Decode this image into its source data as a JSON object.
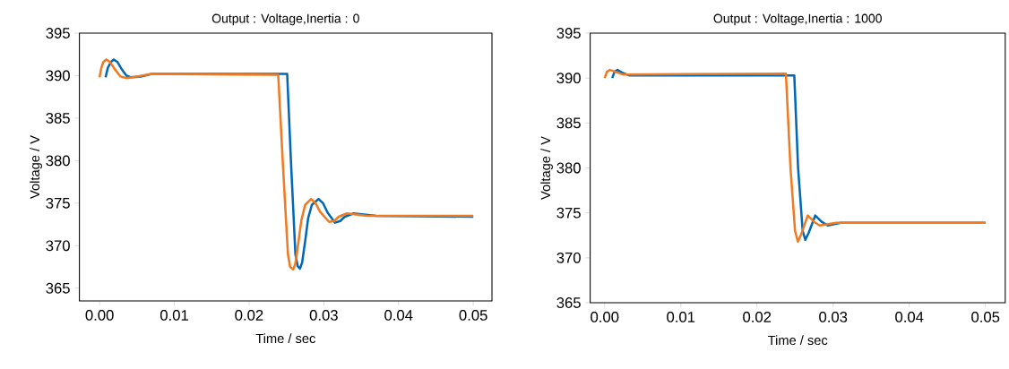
{
  "chart_data": [
    {
      "type": "line",
      "title": "Output : Voltage,Inertia : 0",
      "xlabel": "Time / sec",
      "ylabel": "Voltage / V",
      "xlim": [
        -0.0027,
        0.0525
      ],
      "ylim": [
        363.5,
        395
      ],
      "xticks": [
        {
          "value": 0,
          "label": "0.00"
        },
        0.01,
        0.02,
        0.03,
        0.04,
        0.05
      ],
      "yticks": [
        365,
        370,
        375,
        380,
        385,
        390,
        395
      ],
      "grid": false,
      "marker": "none",
      "line_style": "solid",
      "series": [
        {
          "color": "#0068b7",
          "x": [
            0.0008,
            0.0011,
            0.0015,
            0.0019,
            0.0024,
            0.003,
            0.0036,
            0.0042,
            0.0055,
            0.007,
            0.0251,
            0.0256,
            0.0262,
            0.0265,
            0.0268,
            0.0271,
            0.0275,
            0.0279,
            0.0284,
            0.0293,
            0.0299,
            0.0305,
            0.0315,
            0.0322,
            0.0328,
            0.034,
            0.037,
            0.05
          ],
          "values": [
            389.8,
            390.9,
            391.6,
            391.9,
            391.6,
            390.7,
            390.0,
            389.8,
            389.9,
            390.2,
            390.2,
            380,
            369,
            367.6,
            367.3,
            368.0,
            370.5,
            373.2,
            374.8,
            375.5,
            375.0,
            373.9,
            372.7,
            372.9,
            373.4,
            373.8,
            373.5,
            373.4
          ]
        },
        {
          "color": "#f07a22",
          "x": [
            0.0,
            0.0002,
            0.0005,
            0.0009,
            0.0014,
            0.002,
            0.0028,
            0.0036,
            0.005,
            0.0069,
            0.0239,
            0.0245,
            0.0252,
            0.0255,
            0.0259,
            0.0262,
            0.0266,
            0.027,
            0.0275,
            0.0283,
            0.0289,
            0.0295,
            0.0307,
            0.0314,
            0.032,
            0.0331,
            0.0358,
            0.05
          ],
          "values": [
            389.8,
            390.8,
            391.6,
            391.9,
            391.6,
            390.8,
            389.9,
            389.7,
            389.9,
            390.2,
            390.1,
            380,
            369,
            367.5,
            367.2,
            367.9,
            370.4,
            373.0,
            374.8,
            375.5,
            375.0,
            374.0,
            372.8,
            372.9,
            373.4,
            373.8,
            373.5,
            373.5
          ]
        }
      ]
    },
    {
      "type": "line",
      "title": "Output : Voltage,Inertia : 1000",
      "xlabel": "Time / sec",
      "ylabel": "Voltage / V",
      "xlim": [
        -0.0019,
        0.0526
      ],
      "ylim": [
        365,
        395
      ],
      "xticks": [
        {
          "value": 0,
          "label": "0.00"
        },
        0.01,
        0.02,
        0.03,
        0.04,
        0.05
      ],
      "yticks": [
        365,
        370,
        375,
        380,
        385,
        390,
        395
      ],
      "grid": false,
      "marker": "none",
      "line_style": "solid",
      "series": [
        {
          "color": "#0068b7",
          "x": [
            0.001,
            0.0013,
            0.0017,
            0.0023,
            0.0032,
            0.0249,
            0.0254,
            0.026,
            0.02635,
            0.0268,
            0.02765,
            0.0285,
            0.0293,
            0.031,
            0.05
          ],
          "values": [
            390.0,
            390.7,
            390.9,
            390.6,
            390.3,
            390.3,
            380,
            373,
            372.0,
            372.8,
            374.7,
            374.0,
            373.6,
            373.9,
            373.9
          ]
        },
        {
          "color": "#f07a22",
          "x": [
            0.0,
            0.0003,
            0.0007,
            0.0014,
            0.0024,
            0.0238,
            0.0244,
            0.025,
            0.02537,
            0.0258,
            0.02667,
            0.0275,
            0.02824,
            0.0304,
            0.05
          ],
          "values": [
            390.0,
            390.7,
            390.9,
            390.7,
            390.4,
            390.5,
            380,
            373,
            371.8,
            372.6,
            374.7,
            374.0,
            373.6,
            373.9,
            373.9
          ]
        }
      ]
    }
  ]
}
